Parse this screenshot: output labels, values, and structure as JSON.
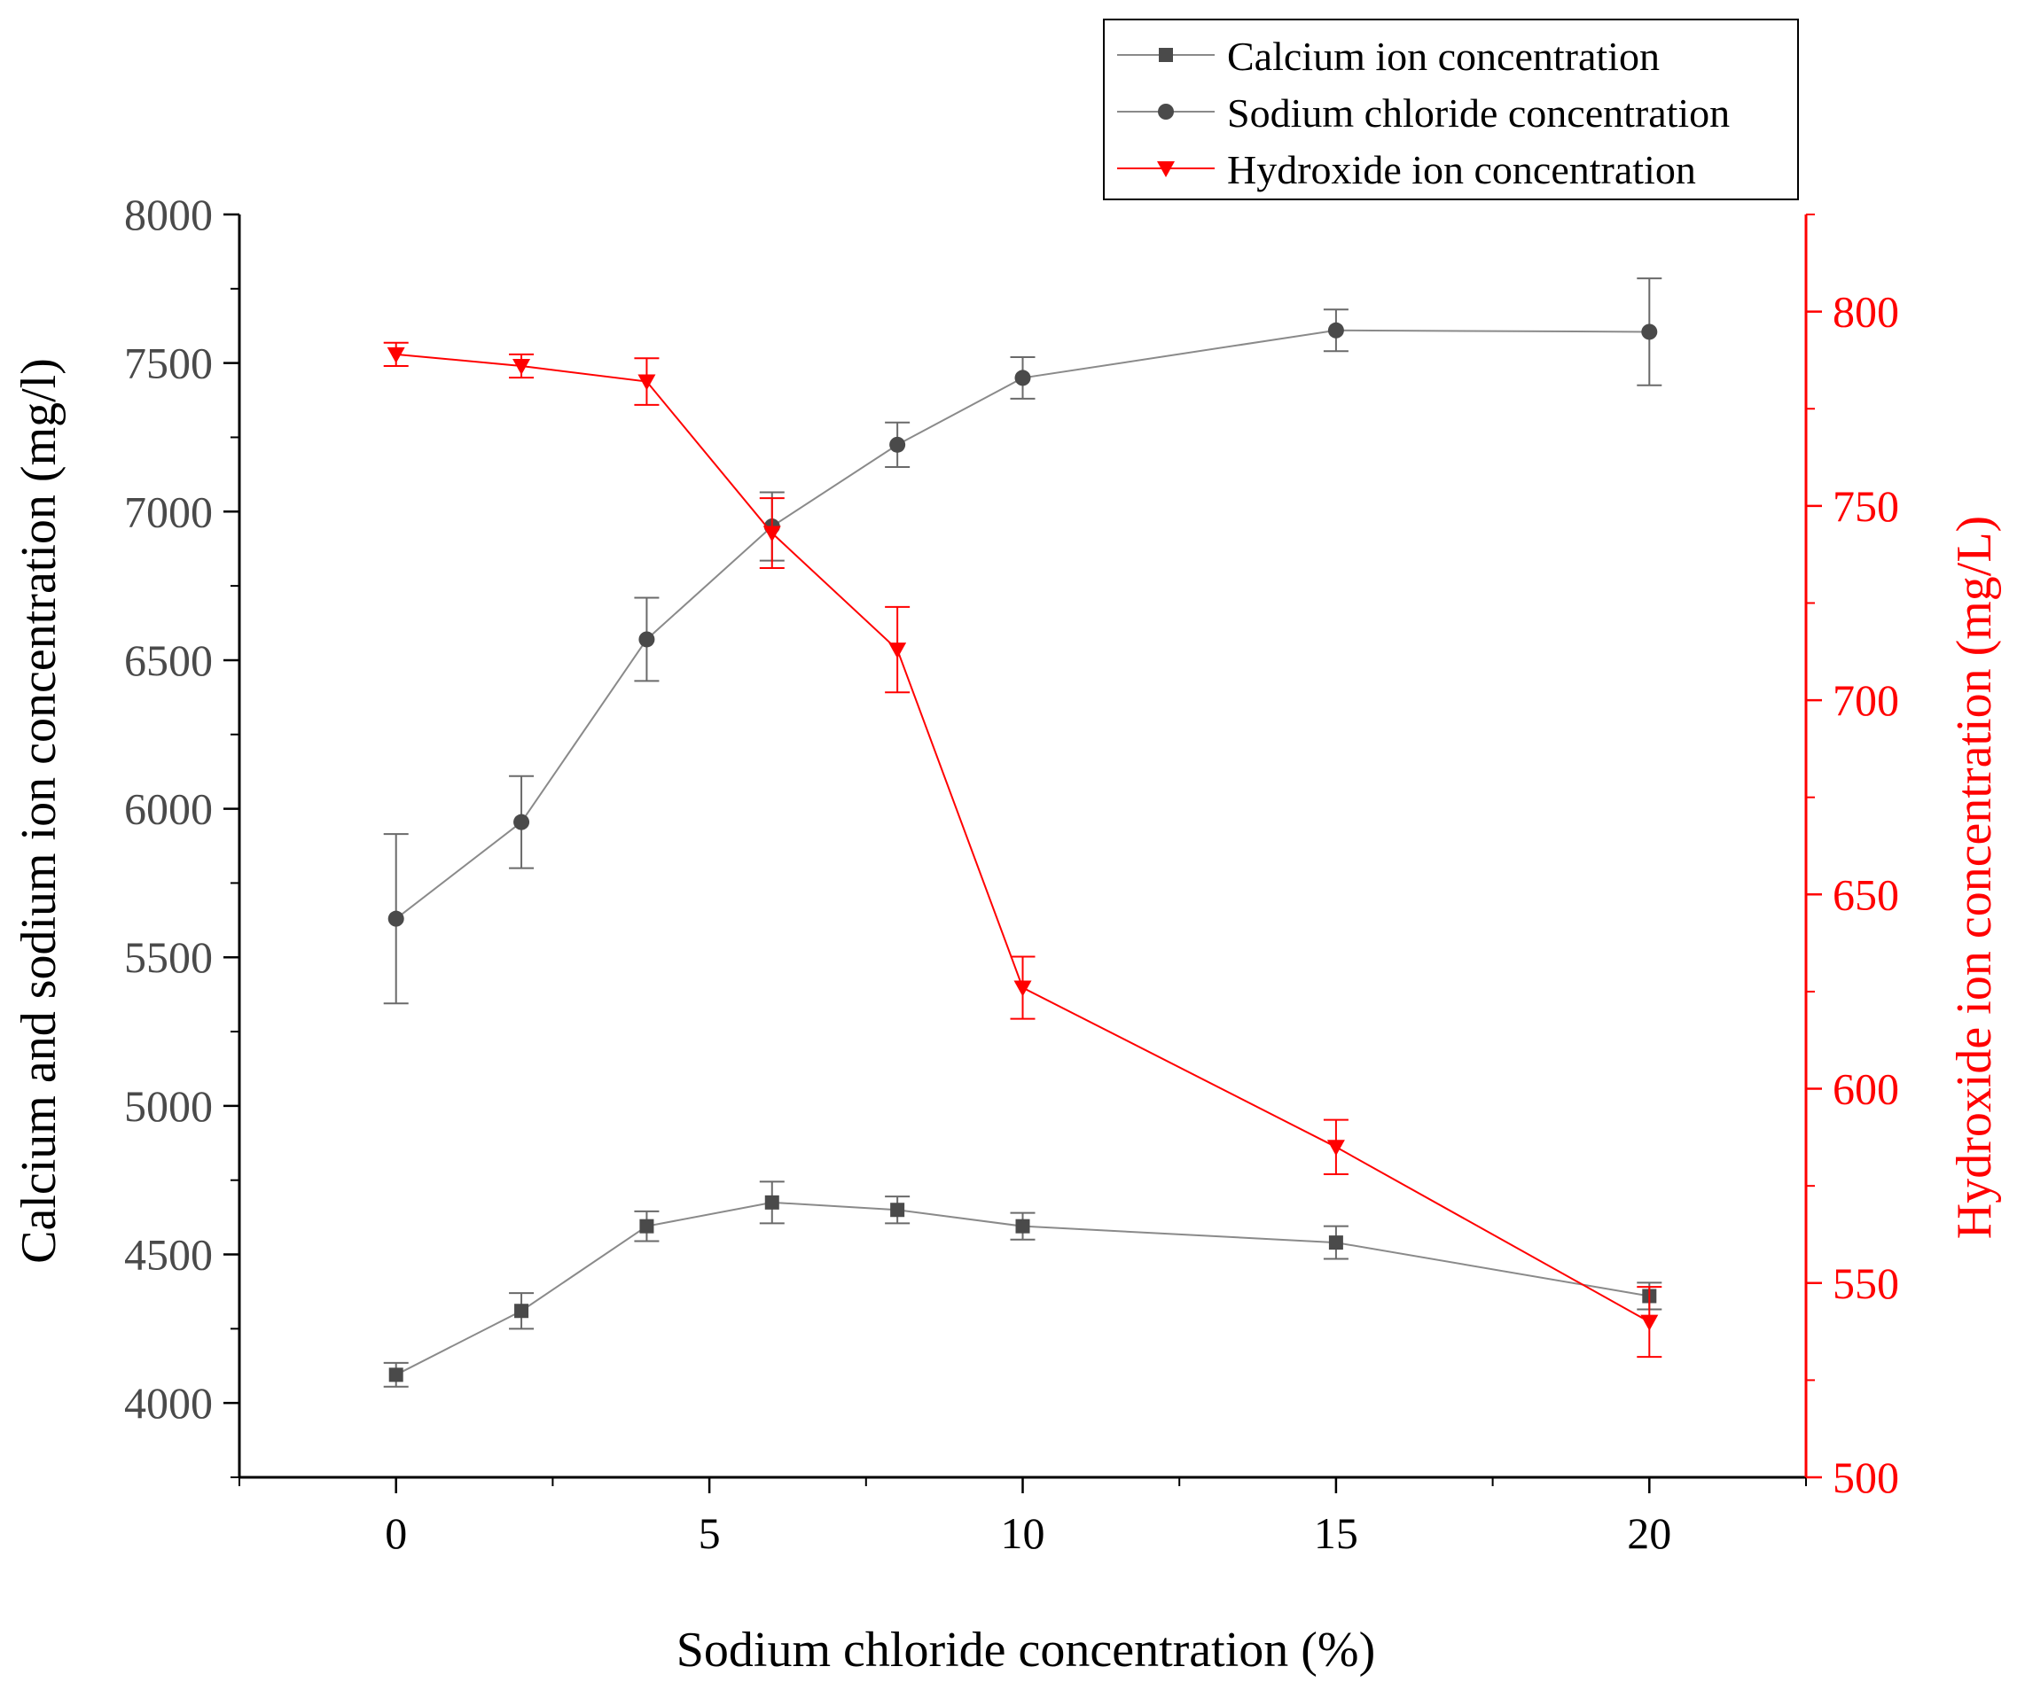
{
  "chart_data": {
    "type": "line",
    "title": "",
    "xlabel": "Sodium chloride concentration (%)",
    "ylabel_left": "Calcium and sodium ion concentration (mg/l)",
    "ylabel_right": "Hydroxide ion concentration (mg/L)",
    "xlim": [
      -2.5,
      22.5
    ],
    "ylim_left": [
      3750,
      8000
    ],
    "ylim_right": [
      500,
      825
    ],
    "x_ticks": [
      0,
      5,
      10,
      15,
      20
    ],
    "x_tick_labels": [
      "0",
      "5",
      "10",
      "15",
      "20"
    ],
    "y_left_ticks": [
      4000,
      4500,
      5000,
      5500,
      6000,
      6500,
      7000,
      7500,
      8000
    ],
    "y_left_tick_labels": [
      "4000",
      "4500",
      "5000",
      "5500",
      "6000",
      "6500",
      "7000",
      "7500",
      "8000"
    ],
    "y_right_ticks": [
      500,
      550,
      600,
      650,
      700,
      750,
      800
    ],
    "y_right_tick_labels": [
      "500",
      "550",
      "600",
      "650",
      "700",
      "750",
      "800"
    ],
    "grid": false,
    "legend_position": "top-right",
    "colors": {
      "gray": "#4a4a4a",
      "gray_line": "#8a8a8a",
      "red": "#ff0000",
      "axis": "#000000"
    },
    "series": [
      {
        "name": "Calcium ion concentration",
        "axis": "left",
        "marker": "square",
        "color": "#4a4a4a",
        "x": [
          0,
          2,
          4,
          6,
          8,
          10,
          15,
          20
        ],
        "y": [
          4095,
          4310,
          4595,
          4675,
          4650,
          4595,
          4540,
          4360
        ],
        "err": [
          40,
          60,
          50,
          70,
          45,
          45,
          55,
          45
        ]
      },
      {
        "name": "Sodium chloride concentration",
        "axis": "left",
        "marker": "circle",
        "color": "#4a4a4a",
        "x": [
          0,
          2,
          4,
          6,
          8,
          10,
          15,
          20
        ],
        "y": [
          5630,
          5955,
          6570,
          6950,
          7225,
          7450,
          7610,
          7605
        ],
        "err": [
          285,
          155,
          140,
          115,
          75,
          70,
          70,
          180
        ]
      },
      {
        "name": "Hydroxide ion concentration",
        "axis": "right",
        "marker": "triangle-down",
        "color": "#ff0000",
        "x": [
          0,
          2,
          4,
          6,
          8,
          10,
          15,
          20
        ],
        "y": [
          789,
          786,
          782,
          743,
          713,
          626,
          585,
          540
        ],
        "err": [
          3,
          3,
          6,
          9,
          11,
          8,
          7,
          9
        ]
      }
    ]
  }
}
